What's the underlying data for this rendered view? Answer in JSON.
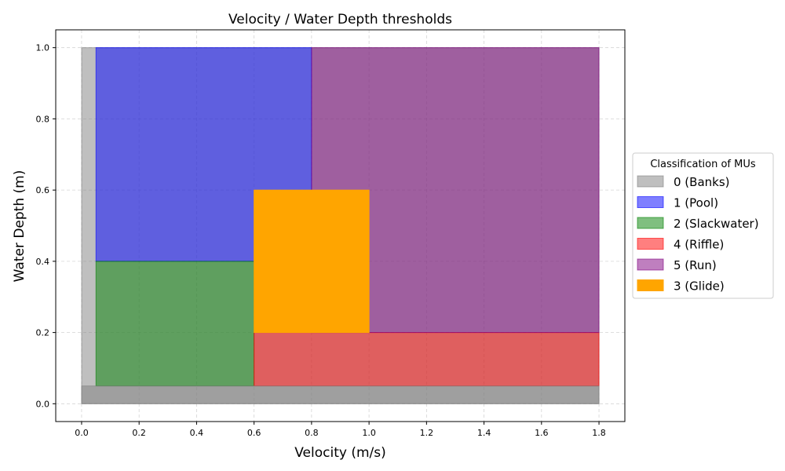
{
  "chart_data": {
    "type": "area",
    "title": "Velocity / Water Depth thresholds",
    "xlabel": "Velocity (m/s)",
    "ylabel": "Water Depth (m)",
    "xlim": [
      -0.09,
      1.89
    ],
    "ylim": [
      -0.05,
      1.05
    ],
    "xticks": [
      0.0,
      0.2,
      0.4,
      0.6,
      0.8,
      1.0,
      1.2,
      1.4,
      1.6,
      1.8
    ],
    "xtick_labels": [
      "0.0",
      "0.2",
      "0.4",
      "0.6",
      "0.8",
      "1.0",
      "1.2",
      "1.4",
      "1.6",
      "1.8"
    ],
    "yticks": [
      0.0,
      0.2,
      0.4,
      0.6,
      0.8,
      1.0
    ],
    "ytick_labels": [
      "0.0",
      "0.2",
      "0.4",
      "0.6",
      "0.8",
      "1.0"
    ],
    "grid": true,
    "legend": {
      "title": "Classification of MUs",
      "placement": "center-right outside"
    },
    "regions": [
      {
        "label": "0 (Banks)",
        "color": "#808080",
        "alpha": 0.5,
        "x": [
          0.0,
          1.8
        ],
        "y": [
          0.0,
          1.0
        ]
      },
      {
        "label": "1 (Pool)",
        "color": "#0000ff",
        "alpha": 0.5,
        "x": [
          0.05,
          0.8
        ],
        "y": [
          0.4,
          1.0
        ]
      },
      {
        "label": "2 (Slackwater)",
        "color": "#008000",
        "alpha": 0.5,
        "x": [
          0.05,
          0.6
        ],
        "y": [
          0.05,
          0.4
        ]
      },
      {
        "label": "4 (Riffle)",
        "color": "#ff0000",
        "alpha": 0.5,
        "x": [
          0.6,
          1.8
        ],
        "y": [
          0.05,
          0.2
        ]
      },
      {
        "label": "5 (Run)",
        "color": "#800080",
        "alpha": 0.5,
        "x": [
          0.8,
          1.8
        ],
        "y": [
          0.2,
          1.0
        ]
      },
      {
        "label": "3 (Glide)",
        "color": "#ffa500",
        "alpha": 1.0,
        "x": [
          0.6,
          1.0
        ],
        "y": [
          0.2,
          0.6
        ]
      }
    ],
    "extra_fill": {
      "color": "#808080",
      "alpha": 0.5,
      "x": [
        0.0,
        1.8
      ],
      "y": [
        0.0,
        0.05
      ]
    }
  }
}
